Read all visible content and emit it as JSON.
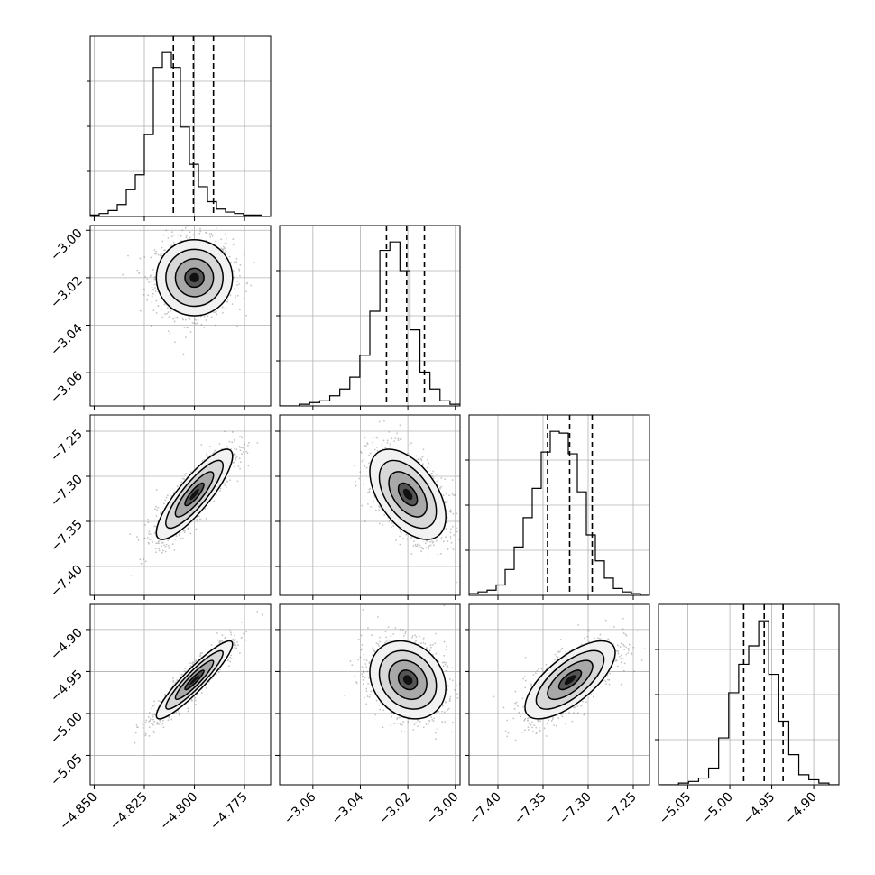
{
  "chart_data": {
    "type": "corner",
    "colors": {
      "scatter": "#555555",
      "line": "#000000",
      "grid": "#b0b0b0"
    },
    "params": [
      {
        "mean": -4.8,
        "sd": 0.0095,
        "q": [
          -4.8105,
          -4.8005,
          -4.7905
        ],
        "range": [
          -4.852,
          -4.762
        ],
        "ticks": [
          -4.85,
          -4.825,
          -4.8,
          -4.775
        ],
        "ticklabels": [
          "−4.850",
          "−4.825",
          "−4.800",
          "−4.775"
        ],
        "hist": [
          1,
          2,
          4,
          8,
          18,
          28,
          55,
          100,
          110,
          100,
          60,
          35,
          20,
          10,
          5,
          3,
          2,
          1,
          1,
          0
        ]
      },
      {
        "mean": -3.02,
        "sd": 0.008,
        "q": [
          -3.029,
          -3.0205,
          -3.013
        ],
        "range": [
          -3.074,
          -2.998
        ],
        "ticks": [
          -3.06,
          -3.04,
          -3.02,
          -3.0
        ],
        "ticklabels": [
          "−3.06",
          "−3.04",
          "−3.02",
          "−3.00"
        ],
        "hist": [
          0,
          0,
          1,
          2,
          3,
          6,
          10,
          17,
          30,
          56,
          92,
          97,
          80,
          45,
          20,
          10,
          3,
          1
        ]
      },
      {
        "mean": -7.32,
        "sd": 0.025,
        "q": [
          -7.345,
          -7.3205,
          -7.2955
        ],
        "range": [
          -7.432,
          -7.232
        ],
        "ticks": [
          -7.4,
          -7.35,
          -7.3,
          -7.25
        ],
        "ticklabels": [
          "−7.40",
          "−7.35",
          "−7.30",
          "−7.25"
        ],
        "hist": [
          1,
          2,
          3,
          6,
          15,
          28,
          45,
          62,
          83,
          95,
          94,
          82,
          60,
          35,
          20,
          10,
          4,
          2,
          1,
          0
        ]
      },
      {
        "mean": -4.96,
        "sd": 0.0232,
        "q": [
          -4.9835,
          -4.959,
          -4.9365
        ],
        "range": [
          -5.085,
          -4.87
        ],
        "ticks": [
          -5.05,
          -5.0,
          -4.95,
          -4.9
        ],
        "ticklabels": [
          "−5.05",
          "−5.00",
          "−4.95",
          "−4.90"
        ],
        "hist": [
          0,
          0,
          1,
          2,
          4,
          10,
          28,
          55,
          72,
          83,
          98,
          66,
          38,
          18,
          6,
          3,
          1,
          0
        ]
      }
    ],
    "correlations": {
      "1-0": 0.0,
      "2-0": 0.85,
      "3-0": 0.92,
      "2-1": -0.5,
      "3-1": -0.2,
      "3-2": 0.7
    }
  }
}
